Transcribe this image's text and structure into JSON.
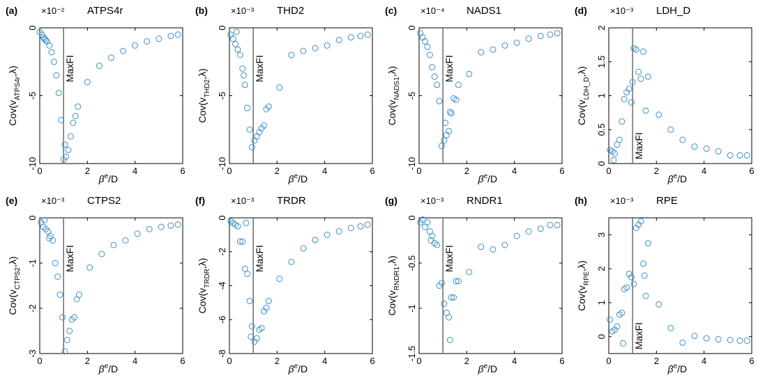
{
  "colors": {
    "marker": "#3a8fc9",
    "axis": "#000000",
    "vline": "#6b6b6b"
  },
  "shared": {
    "xlabel_base": "β",
    "xlabel_sup": "e",
    "xlabel_tail": "/D",
    "x_ticks": [
      "0",
      "2",
      "4",
      "6"
    ],
    "vline_label": "MaxFI",
    "ylabel_prefix": "Cov(v",
    "ylabel_suffix": ",λ)"
  },
  "chart_data": [
    {
      "panel": "(a)",
      "title": "ATPS4r",
      "type": "scatter",
      "exponent": "×10⁻²",
      "ylabel_sub": "ATPS4r",
      "xlim": [
        0,
        6
      ],
      "ylim": [
        -10,
        0
      ],
      "y_ticks": [
        "0",
        "-5",
        "-10"
      ],
      "y_tick_values": [
        0,
        -5,
        -10
      ],
      "vline_x": 1,
      "x": [
        0,
        0.1,
        0.2,
        0.3,
        0.4,
        0.5,
        0.6,
        0.7,
        0.8,
        0.9,
        1.0,
        1.1,
        1.2,
        1.3,
        1.4,
        1.5,
        1.6,
        2.0,
        2.5,
        3.0,
        3.5,
        4.0,
        4.5,
        5.0,
        5.5,
        5.8,
        0.15,
        0.25,
        1.05
      ],
      "y": [
        -0.3,
        -0.5,
        -0.8,
        -1.0,
        -1.3,
        -1.8,
        -2.5,
        -3.5,
        -4.8,
        -6.8,
        -9.7,
        -9.5,
        -9.0,
        -8.0,
        -7.0,
        -6.5,
        -5.8,
        -4.0,
        -2.8,
        -2.2,
        -1.7,
        -1.3,
        -1.0,
        -0.8,
        -0.6,
        -0.5,
        -0.7,
        -0.9,
        -8.6
      ]
    },
    {
      "panel": "(b)",
      "title": "THD2",
      "type": "scatter",
      "exponent": "×10⁻³",
      "ylabel_sub": "THD2",
      "xlim": [
        0,
        6
      ],
      "ylim": [
        -10,
        0
      ],
      "y_ticks": [
        "0",
        "-5",
        "-10"
      ],
      "y_tick_values": [
        0,
        -5,
        -10
      ],
      "vline_x": 1,
      "x": [
        0.05,
        0.15,
        0.25,
        0.35,
        0.45,
        0.55,
        0.65,
        0.75,
        0.85,
        0.95,
        1.05,
        1.15,
        1.25,
        1.35,
        1.45,
        1.55,
        1.65,
        2.1,
        2.6,
        3.1,
        3.6,
        4.1,
        4.6,
        5.1,
        5.5,
        5.8,
        0.3,
        0.6
      ],
      "y": [
        -0.5,
        -0.8,
        -1.2,
        -1.6,
        -2.0,
        -3.0,
        -4.2,
        -5.9,
        -7.5,
        -8.8,
        -8.3,
        -8.0,
        -7.7,
        -7.4,
        -7.2,
        -6.0,
        -5.8,
        -4.4,
        -2.0,
        -1.7,
        -1.5,
        -1.3,
        -0.9,
        -0.7,
        -0.6,
        -0.5,
        -0.3,
        -3.5
      ]
    },
    {
      "panel": "(c)",
      "title": "NADS1",
      "type": "scatter",
      "exponent": "×10⁻⁴",
      "ylabel_sub": "NADS1",
      "xlim": [
        0,
        6
      ],
      "ylim": [
        -10,
        0
      ],
      "y_ticks": [
        "0",
        "-5",
        "-10"
      ],
      "y_tick_values": [
        0,
        -5,
        -10
      ],
      "vline_x": 1,
      "x": [
        0.05,
        0.15,
        0.25,
        0.35,
        0.45,
        0.55,
        0.65,
        0.75,
        0.85,
        0.95,
        1.05,
        1.15,
        1.25,
        1.35,
        1.45,
        1.55,
        1.65,
        2.1,
        2.6,
        3.1,
        3.6,
        4.1,
        4.6,
        5.1,
        5.5,
        5.8,
        1.1,
        1.3
      ],
      "y": [
        -0.4,
        -0.7,
        -1.0,
        -1.4,
        -2.0,
        -2.9,
        -3.6,
        -4.2,
        -5.4,
        -8.7,
        -8.3,
        -7.9,
        -7.6,
        -6.3,
        -5.2,
        -5.3,
        -4.2,
        -3.4,
        -1.8,
        -1.6,
        -1.3,
        -1.1,
        -0.8,
        -0.6,
        -0.5,
        -0.4,
        -7.0,
        -6.2
      ]
    },
    {
      "panel": "(d)",
      "title": "LDH_D",
      "type": "scatter",
      "exponent": "×10⁻³",
      "ylabel_sub": "LDH_D",
      "xlim": [
        0,
        6
      ],
      "ylim": [
        0,
        2
      ],
      "y_ticks": [
        "2",
        "1.5",
        "1",
        "0.5",
        "0"
      ],
      "y_tick_values": [
        2,
        1.5,
        1,
        0.5,
        0
      ],
      "vline_x": 1,
      "x": [
        0.05,
        0.15,
        0.25,
        0.35,
        0.45,
        0.55,
        0.65,
        0.75,
        0.85,
        0.95,
        1.05,
        1.15,
        1.25,
        1.35,
        1.45,
        1.55,
        1.65,
        2.1,
        2.6,
        3.1,
        3.6,
        4.1,
        4.6,
        5.1,
        5.5,
        5.8,
        0.2,
        1.0
      ],
      "y": [
        0.2,
        0.18,
        0.15,
        0.28,
        0.35,
        0.62,
        0.95,
        1.05,
        1.1,
        0.9,
        1.7,
        1.68,
        1.35,
        1.25,
        1.65,
        0.78,
        1.28,
        0.72,
        0.5,
        0.35,
        0.25,
        0.22,
        0.18,
        0.12,
        0.12,
        0.12,
        0.05,
        1.2
      ]
    },
    {
      "panel": "(e)",
      "title": "CTPS2",
      "type": "scatter",
      "exponent": "×10⁻³",
      "ylabel_sub": "CTPS2",
      "xlim": [
        0,
        6
      ],
      "ylim": [
        -3,
        0
      ],
      "y_ticks": [
        "0",
        "-1",
        "-2",
        "-3"
      ],
      "y_tick_values": [
        0,
        -1,
        -2,
        -3
      ],
      "vline_x": 1,
      "x": [
        0.05,
        0.15,
        0.25,
        0.35,
        0.45,
        0.55,
        0.65,
        0.75,
        0.85,
        0.95,
        1.05,
        1.15,
        1.25,
        1.35,
        1.45,
        1.55,
        1.65,
        2.1,
        2.6,
        3.1,
        3.6,
        4.1,
        4.6,
        5.1,
        5.5,
        5.8,
        0.2,
        0.4
      ],
      "y": [
        -0.1,
        -0.2,
        -0.25,
        -0.3,
        -0.4,
        -0.5,
        -1.0,
        -1.3,
        -1.7,
        -2.2,
        -2.95,
        -2.7,
        -2.5,
        -2.25,
        -2.2,
        -1.8,
        -1.7,
        -1.1,
        -0.8,
        -0.6,
        -0.5,
        -0.35,
        -0.25,
        -0.2,
        -0.17,
        -0.15,
        -0.05,
        -0.45
      ]
    },
    {
      "panel": "(f)",
      "title": "TRDR",
      "type": "scatter",
      "exponent": "×10⁻³",
      "ylabel_sub": "TRDR",
      "xlim": [
        0,
        6
      ],
      "ylim": [
        -8,
        0
      ],
      "y_ticks": [
        "0",
        "-2",
        "-4",
        "-6",
        "-8"
      ],
      "y_tick_values": [
        0,
        -2,
        -4,
        -6,
        -8
      ],
      "vline_x": 1,
      "x": [
        0.05,
        0.15,
        0.25,
        0.35,
        0.45,
        0.55,
        0.65,
        0.75,
        0.85,
        0.95,
        1.05,
        1.15,
        1.25,
        1.35,
        1.45,
        1.55,
        1.65,
        2.1,
        2.6,
        3.1,
        3.6,
        4.1,
        4.6,
        5.1,
        5.5,
        5.8,
        0.7,
        0.9
      ],
      "y": [
        -0.2,
        -0.3,
        -0.4,
        -0.5,
        -1.4,
        -1.4,
        -3.0,
        -3.3,
        -4.9,
        -6.4,
        -7.3,
        -7.1,
        -6.6,
        -6.5,
        -5.5,
        -5.3,
        -4.9,
        -3.6,
        -2.6,
        -1.8,
        -1.3,
        -1.0,
        -0.8,
        -0.6,
        -0.5,
        -0.4,
        -0.3,
        -7.0
      ]
    },
    {
      "panel": "(g)",
      "title": "RNDR1",
      "type": "scatter",
      "exponent": "×10⁻³",
      "ylabel_sub": "RNDR1",
      "xlim": [
        0,
        6
      ],
      "ylim": [
        -1.5,
        0
      ],
      "y_ticks": [
        "0",
        "-0.5",
        "-1",
        "-1.5"
      ],
      "y_tick_values": [
        0,
        -0.5,
        -1,
        -1.5
      ],
      "vline_x": 1,
      "x": [
        0.05,
        0.15,
        0.25,
        0.35,
        0.45,
        0.55,
        0.65,
        0.75,
        0.85,
        0.95,
        1.05,
        1.15,
        1.25,
        1.35,
        1.45,
        1.55,
        1.65,
        2.1,
        2.6,
        3.1,
        3.6,
        4.1,
        4.6,
        5.1,
        5.5,
        5.8,
        0.5,
        1.3
      ],
      "y": [
        -0.05,
        -0.02,
        -0.1,
        -0.05,
        -0.15,
        -0.2,
        -0.28,
        -0.3,
        -0.75,
        -0.72,
        -0.95,
        -1.05,
        -1.1,
        -0.88,
        -0.88,
        -0.7,
        -0.7,
        -0.6,
        -0.32,
        -0.35,
        -0.3,
        -0.2,
        -0.15,
        -0.12,
        -0.08,
        -0.08,
        -0.25,
        -1.35
      ]
    },
    {
      "panel": "(h)",
      "title": "RPE",
      "type": "scatter",
      "exponent": "×10⁻³",
      "ylabel_sub": "RPE",
      "xlim": [
        0,
        6
      ],
      "ylim": [
        -0.5,
        3.5
      ],
      "y_ticks": [
        "3",
        "2",
        "1",
        "0"
      ],
      "y_tick_values": [
        3,
        2,
        1,
        0
      ],
      "vline_x": 1,
      "x": [
        0.05,
        0.15,
        0.25,
        0.35,
        0.45,
        0.55,
        0.65,
        0.75,
        0.85,
        0.95,
        1.05,
        1.15,
        1.25,
        1.35,
        1.45,
        1.55,
        1.65,
        2.1,
        2.6,
        3.1,
        3.6,
        4.1,
        4.6,
        5.1,
        5.5,
        5.8,
        0.6,
        1.5
      ],
      "y": [
        0.5,
        0.15,
        0.2,
        0.3,
        0.65,
        0.7,
        1.4,
        1.45,
        1.85,
        1.75,
        1.55,
        3.2,
        3.3,
        3.4,
        2.15,
        1.2,
        2.75,
        0.95,
        0.25,
        -0.18,
        0.02,
        -0.05,
        -0.08,
        -0.1,
        -0.12,
        -0.12,
        -0.2,
        1.8
      ]
    }
  ]
}
